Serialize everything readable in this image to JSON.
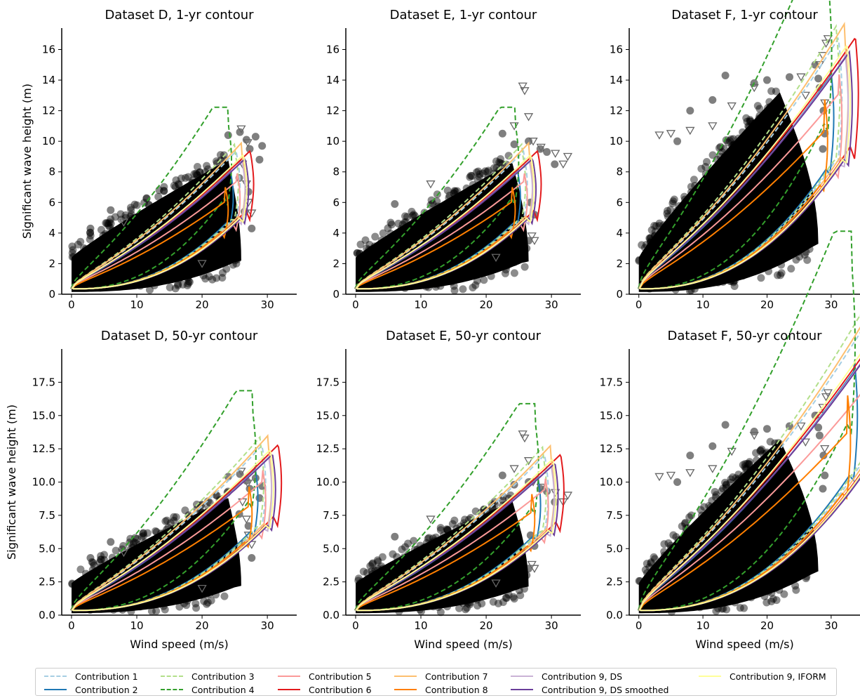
{
  "figure": {
    "colors": {
      "data_points": "#000000",
      "axis": "#000000"
    },
    "legend": {
      "placement": "bottom",
      "entries": [
        {
          "label": "Contribution 1",
          "color": "#a6cee3",
          "style": "dashed"
        },
        {
          "label": "Contribution 2",
          "color": "#1f78b4",
          "style": "solid"
        },
        {
          "label": "Contribution 3",
          "color": "#b2df8a",
          "style": "dashed"
        },
        {
          "label": "Contribution 4",
          "color": "#33a02c",
          "style": "dashed"
        },
        {
          "label": "Contribution 5",
          "color": "#fb9a99",
          "style": "solid"
        },
        {
          "label": "Contribution 6",
          "color": "#e31a1c",
          "style": "solid"
        },
        {
          "label": "Contribution 7",
          "color": "#fdbf6f",
          "style": "solid"
        },
        {
          "label": "Contribution 8",
          "color": "#ff7f00",
          "style": "solid"
        },
        {
          "label": "Contribution 9, DS",
          "color": "#cab2d6",
          "style": "solid"
        },
        {
          "label": "Contribution 9, DS smoothed",
          "color": "#6a3d9a",
          "style": "solid"
        },
        {
          "label": "Contribution 9, IFORM",
          "color": "#ffff99",
          "style": "solid"
        }
      ]
    }
  },
  "chart_data": [
    {
      "type": "scatter",
      "title": "Dataset D, 1-yr contour",
      "xlabel": "",
      "ylabel": "Significant wave height (m)",
      "xlim": [
        -1.5,
        34.5
      ],
      "ylim": [
        0,
        17.4
      ],
      "xticks": [
        0,
        10,
        20,
        30
      ],
      "xtick_labels": [
        "0",
        "10",
        "20",
        "30"
      ],
      "yticks": [
        0,
        2,
        4,
        6,
        8,
        10,
        12,
        14,
        16
      ],
      "ytick_labels": [
        "0",
        "2",
        "4",
        "6",
        "8",
        "10",
        "12",
        "14",
        "16"
      ],
      "cloud": {
        "vmax": 26,
        "hmax": 10.6,
        "ymax": 8.8,
        "xmax": 24
      },
      "contour_scale": 1.0,
      "outliers": [
        [
          24,
          10.4
        ],
        [
          25.8,
          10.6
        ],
        [
          26.8,
          10.1
        ],
        [
          27.3,
          9.5
        ],
        [
          28.2,
          10.3
        ],
        [
          29.2,
          9.7
        ],
        [
          28.8,
          8.8
        ],
        [
          27.6,
          4.3
        ],
        [
          26.5,
          5.4
        ],
        [
          27.1,
          6.7
        ],
        [
          25.7,
          7.6
        ],
        [
          2.9,
          4.3
        ],
        [
          6,
          5.5
        ],
        [
          24.5,
          3.1
        ],
        [
          23.4,
          2.2
        ]
      ],
      "triangles": [
        [
          26,
          10.8
        ],
        [
          27,
          9.9
        ],
        [
          26.2,
          8.5
        ],
        [
          26.8,
          7.2
        ],
        [
          27.1,
          6
        ],
        [
          27.6,
          5.3
        ],
        [
          20,
          2
        ],
        [
          8,
          4.7
        ]
      ]
    },
    {
      "type": "scatter",
      "title": "Dataset E, 1-yr contour",
      "xlabel": "",
      "ylabel": "",
      "xlim": [
        -1.5,
        34.5
      ],
      "ylim": [
        0,
        17.4
      ],
      "xticks": [
        0,
        10,
        20,
        30
      ],
      "xtick_labels": [
        "0",
        "10",
        "20",
        "30"
      ],
      "yticks": [
        0,
        2,
        4,
        6,
        8,
        10,
        12,
        14,
        16
      ],
      "ytick_labels": [
        "0",
        "2",
        "4",
        "6",
        "8",
        "10",
        "12",
        "14",
        "16"
      ],
      "cloud": {
        "vmax": 26.5,
        "hmax": 10.6,
        "ymax": 8.6,
        "xmax": 24
      },
      "contour_scale": 1.0,
      "outliers": [
        [
          22.5,
          10.5
        ],
        [
          24.3,
          9.8
        ],
        [
          26.5,
          10
        ],
        [
          28.3,
          9.5
        ],
        [
          29.3,
          9.3
        ],
        [
          30.5,
          8.5
        ],
        [
          26.8,
          6
        ],
        [
          27.4,
          5.2
        ],
        [
          26.5,
          3.5
        ],
        [
          26.2,
          3
        ],
        [
          6,
          5.9
        ]
      ],
      "triangles": [
        [
          25.6,
          13.6
        ],
        [
          25.9,
          13.3
        ],
        [
          26.5,
          11.6
        ],
        [
          24.3,
          11
        ],
        [
          27.2,
          10
        ],
        [
          28.4,
          9.6
        ],
        [
          30.6,
          9.2
        ],
        [
          32.5,
          9
        ],
        [
          31.8,
          8.5
        ],
        [
          27,
          3.8
        ],
        [
          27.4,
          3.5
        ],
        [
          21.5,
          2.4
        ],
        [
          11.5,
          7.2
        ]
      ]
    },
    {
      "type": "scatter",
      "title": "Dataset F, 1-yr contour",
      "xlabel": "",
      "ylabel": "",
      "xlim": [
        -1.5,
        34.5
      ],
      "ylim": [
        0,
        17.4
      ],
      "xticks": [
        0,
        10,
        20,
        30
      ],
      "xtick_labels": [
        "0",
        "10",
        "20",
        "30"
      ],
      "yticks": [
        0,
        2,
        4,
        6,
        8,
        10,
        12,
        14,
        16
      ],
      "ytick_labels": [
        "0",
        "2",
        "4",
        "6",
        "8",
        "10",
        "12",
        "14",
        "16"
      ],
      "cloud": {
        "vmax": 28,
        "hmax": 14.3,
        "ymax": 13.2,
        "xmax": 22
      },
      "contour_scale": 1.35,
      "outliers": [
        [
          13.5,
          14.3
        ],
        [
          18,
          13.8
        ],
        [
          20,
          14
        ],
        [
          23.5,
          14.2
        ],
        [
          27.5,
          15
        ],
        [
          28,
          14.1
        ],
        [
          28.2,
          13.5
        ],
        [
          28.8,
          12
        ],
        [
          29,
          10.5
        ],
        [
          28.7,
          9.5
        ],
        [
          6,
          10
        ],
        [
          8,
          12
        ],
        [
          11.5,
          12.7
        ]
      ],
      "triangles": [
        [
          29.5,
          16.7
        ],
        [
          29.2,
          16.4
        ],
        [
          28.7,
          15.6
        ],
        [
          28.2,
          15
        ],
        [
          25.3,
          14.2
        ],
        [
          29,
          12.5
        ],
        [
          18,
          13.5
        ],
        [
          14.5,
          12.3
        ],
        [
          5,
          10.5
        ],
        [
          3.2,
          10.4
        ],
        [
          8,
          10.7
        ],
        [
          11.5,
          11
        ],
        [
          26,
          13
        ]
      ]
    },
    {
      "type": "scatter",
      "title": "Dataset D, 50-yr contour",
      "xlabel": "Wind speed (m/s)",
      "ylabel": "Significant wave height (m)",
      "xlim": [
        -1.5,
        34.5
      ],
      "ylim": [
        0,
        20
      ],
      "xticks": [
        0,
        10,
        20,
        30
      ],
      "xtick_labels": [
        "0",
        "10",
        "20",
        "30"
      ],
      "yticks": [
        0,
        2.5,
        5,
        7.5,
        10,
        12.5,
        15,
        17.5
      ],
      "ytick_labels": [
        "0.0",
        "2.5",
        "5.0",
        "7.5",
        "10.0",
        "12.5",
        "15.0",
        "17.5"
      ],
      "cloud": {
        "vmax": 26,
        "hmax": 10.6,
        "ymax": 8.8,
        "xmax": 24
      },
      "contour_scale": 1.38,
      "outliers": [
        [
          24,
          10.4
        ],
        [
          25.8,
          10.6
        ],
        [
          26.8,
          10.1
        ],
        [
          27.3,
          9.5
        ],
        [
          28.2,
          10.3
        ],
        [
          29.2,
          9.7
        ],
        [
          28.8,
          8.8
        ],
        [
          27.6,
          4.3
        ],
        [
          26.5,
          5.4
        ],
        [
          27.1,
          6.7
        ],
        [
          25.7,
          7.6
        ],
        [
          2.9,
          4.3
        ],
        [
          6,
          5.5
        ],
        [
          24.5,
          3.1
        ],
        [
          23.4,
          2.2
        ]
      ],
      "triangles": [
        [
          26,
          10.8
        ],
        [
          27,
          9.9
        ],
        [
          26.2,
          8.5
        ],
        [
          26.8,
          7.2
        ],
        [
          27.1,
          6
        ],
        [
          27.6,
          5.3
        ],
        [
          20,
          2
        ],
        [
          8,
          4.7
        ]
      ]
    },
    {
      "type": "scatter",
      "title": "Dataset E, 50-yr contour",
      "xlabel": "Wind speed (m/s)",
      "ylabel": "",
      "xlim": [
        -1.5,
        34.5
      ],
      "ylim": [
        0,
        20
      ],
      "xticks": [
        0,
        10,
        20,
        30
      ],
      "xtick_labels": [
        "0",
        "10",
        "20",
        "30"
      ],
      "yticks": [
        0,
        2.5,
        5,
        7.5,
        10,
        12.5,
        15,
        17.5
      ],
      "ytick_labels": [
        "0.0",
        "2.5",
        "5.0",
        "7.5",
        "10.0",
        "12.5",
        "15.0",
        "17.5"
      ],
      "cloud": {
        "vmax": 26.5,
        "hmax": 10.6,
        "ymax": 8.6,
        "xmax": 24
      },
      "contour_scale": 1.3,
      "outliers": [
        [
          22.5,
          10.5
        ],
        [
          24.3,
          9.8
        ],
        [
          26.5,
          10
        ],
        [
          28.3,
          9.5
        ],
        [
          29.3,
          9.3
        ],
        [
          30.5,
          8.5
        ],
        [
          26.8,
          6
        ],
        [
          27.4,
          5.2
        ],
        [
          26.5,
          3.5
        ],
        [
          26.2,
          3
        ],
        [
          6,
          5.9
        ]
      ],
      "triangles": [
        [
          25.6,
          13.6
        ],
        [
          25.9,
          13.3
        ],
        [
          26.5,
          11.6
        ],
        [
          24.3,
          11
        ],
        [
          27.2,
          10
        ],
        [
          28.4,
          9.6
        ],
        [
          30.6,
          9.2
        ],
        [
          32.5,
          9
        ],
        [
          31.8,
          8.5
        ],
        [
          27,
          3.8
        ],
        [
          27.4,
          3.5
        ],
        [
          21.5,
          2.4
        ],
        [
          11.5,
          7.2
        ]
      ]
    },
    {
      "type": "scatter",
      "title": "Dataset F, 50-yr contour",
      "xlabel": "Wind speed (m/s)",
      "ylabel": "",
      "xlim": [
        -1.5,
        34.5
      ],
      "ylim": [
        0,
        20
      ],
      "xticks": [
        0,
        10,
        20,
        30
      ],
      "xtick_labels": [
        "0",
        "10",
        "20",
        "30"
      ],
      "yticks": [
        0,
        2.5,
        5,
        7.5,
        10,
        12.5,
        15,
        17.5
      ],
      "ytick_labels": [
        "0.0",
        "2.5",
        "5.0",
        "7.5",
        "10.0",
        "12.5",
        "15.0",
        "17.5"
      ],
      "cloud": {
        "vmax": 28,
        "hmax": 14.3,
        "ymax": 13.2,
        "xmax": 22
      },
      "contour_scale": 1.75,
      "outliers": [
        [
          13.5,
          14.3
        ],
        [
          18,
          13.8
        ],
        [
          20,
          14
        ],
        [
          23.5,
          14.2
        ],
        [
          27.5,
          15
        ],
        [
          28,
          14.1
        ],
        [
          28.2,
          13.5
        ],
        [
          28.8,
          12
        ],
        [
          29,
          10.5
        ],
        [
          28.7,
          9.5
        ],
        [
          6,
          10
        ],
        [
          8,
          12
        ],
        [
          11.5,
          12.7
        ]
      ],
      "triangles": [
        [
          29.5,
          16.7
        ],
        [
          29.2,
          16.4
        ],
        [
          28.7,
          15.6
        ],
        [
          28.2,
          15
        ],
        [
          25.3,
          14.2
        ],
        [
          29,
          12.5
        ],
        [
          18,
          13.5
        ],
        [
          14.5,
          12.3
        ],
        [
          5,
          10.5
        ],
        [
          3.2,
          10.4
        ],
        [
          8,
          10.7
        ],
        [
          11.5,
          11
        ],
        [
          26,
          13
        ]
      ]
    }
  ]
}
